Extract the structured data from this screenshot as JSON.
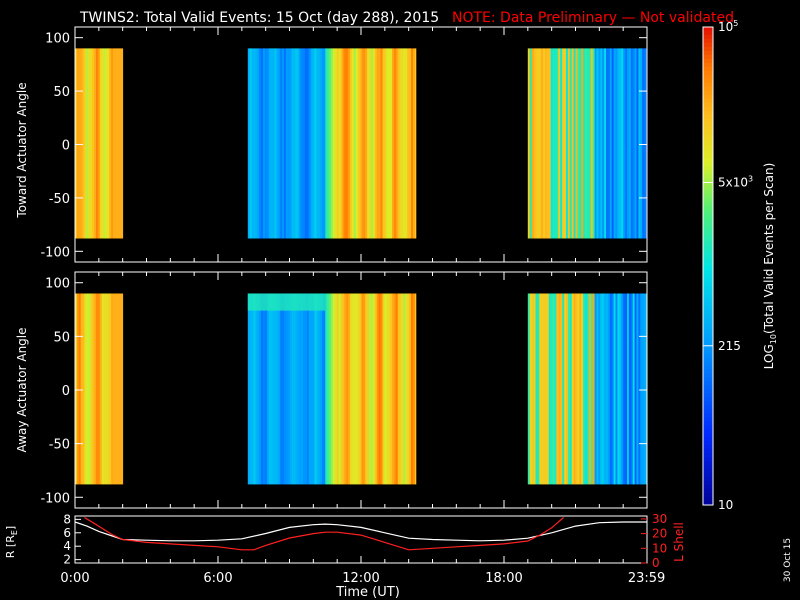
{
  "title": "TWINS2: Total Valid Events: 15 Oct (day 288), 2015",
  "note": "NOTE: Data Preliminary — Not validated",
  "date_stamp": "30 Oct 15",
  "colors": {
    "background": "#000000",
    "axes": "#ffffff",
    "note": "#ff0000",
    "lshell": "#ff2020",
    "radius": "#ffffff"
  },
  "chart_data": [
    {
      "type": "heatmap",
      "name": "toward",
      "ylabel": "Toward Actuator Angle",
      "xlim": [
        0,
        24
      ],
      "ylim": [
        -110,
        110
      ],
      "yticks": [
        100,
        50,
        0,
        -50,
        -100
      ],
      "angle_range": [
        -88,
        90
      ],
      "intervals": [
        {
          "start": 0.0,
          "end": 2.0,
          "profile": "warm"
        },
        {
          "start": 7.25,
          "end": 10.5,
          "profile": "cool"
        },
        {
          "start": 10.5,
          "end": 14.3,
          "profile": "warm"
        },
        {
          "start": 19.0,
          "end": 21.8,
          "profile": "mixed"
        },
        {
          "start": 21.8,
          "end": 24.0,
          "profile": "cool-dark"
        }
      ]
    },
    {
      "type": "heatmap",
      "name": "away",
      "ylabel": "Away Actuator Angle",
      "xlim": [
        0,
        24
      ],
      "ylim": [
        -110,
        110
      ],
      "yticks": [
        100,
        50,
        0,
        -50,
        -100
      ],
      "angle_range": [
        -88,
        90
      ],
      "intervals": [
        {
          "start": 0.0,
          "end": 2.0,
          "profile": "warm"
        },
        {
          "start": 7.25,
          "end": 10.5,
          "profile": "cool"
        },
        {
          "start": 10.5,
          "end": 14.3,
          "profile": "warm"
        },
        {
          "start": 19.0,
          "end": 21.8,
          "profile": "mixed"
        },
        {
          "start": 21.8,
          "end": 24.0,
          "profile": "cool-dark"
        }
      ]
    },
    {
      "type": "line",
      "name": "orbit",
      "xlabel": "Time (UT)",
      "xticks": [
        {
          "v": 0,
          "label": "0:00"
        },
        {
          "v": 6,
          "label": "6:00"
        },
        {
          "v": 12,
          "label": "12:00"
        },
        {
          "v": 18,
          "label": "18:00"
        },
        {
          "v": 23.983,
          "label": "23:59"
        }
      ],
      "ylabel_left": "R [R",
      "ylabel_left_sub": "E",
      "ylabel_left_end": "]",
      "ylim_left": [
        1.5,
        8.5
      ],
      "yticks_left": [
        2,
        4,
        6,
        8
      ],
      "ylabel_right": "L Shell",
      "ylim_right": [
        0,
        32
      ],
      "yticks_right": [
        0,
        10,
        20,
        30
      ],
      "series": [
        {
          "axis": "left",
          "x": [
            0,
            0.5,
            1,
            1.5,
            2,
            3,
            4,
            5,
            6,
            7,
            8,
            9,
            10,
            10.5,
            11,
            12,
            13,
            14,
            15,
            16,
            17,
            18,
            19,
            20,
            21,
            22,
            23,
            24
          ],
          "y": [
            7.6,
            7.0,
            6.2,
            5.6,
            5.0,
            4.9,
            4.8,
            4.8,
            4.9,
            5.1,
            5.9,
            6.8,
            7.2,
            7.3,
            7.2,
            6.8,
            6.0,
            5.2,
            5.0,
            4.9,
            4.8,
            4.9,
            5.2,
            6.0,
            7.0,
            7.5,
            7.6,
            7.6
          ]
        },
        {
          "axis": "right",
          "x": [
            0.4,
            0.8,
            1.2,
            1.6,
            2,
            3,
            4,
            5,
            6,
            7,
            7.5,
            8,
            9,
            10,
            10.5,
            11,
            12,
            13,
            14,
            15,
            16,
            17,
            18,
            19,
            19.5,
            20,
            20.5
          ],
          "y": [
            31,
            27,
            23,
            19,
            16,
            14,
            13,
            12,
            11,
            9,
            9,
            12,
            17,
            20,
            21,
            21,
            19,
            14,
            9,
            10,
            11,
            12,
            13,
            15,
            19,
            24,
            31
          ]
        }
      ]
    }
  ],
  "colorbar": {
    "label_prefix": "LOG",
    "label_sub": "10",
    "label_suffix": "(Total Valid Events per Scan)",
    "scale": "log",
    "range": [
      10,
      100000
    ],
    "ticks": [
      {
        "v": 100000,
        "base": "10",
        "sup": "5"
      },
      {
        "v": 5000,
        "base": "5x10",
        "sup": "3"
      },
      {
        "v": 215,
        "base": "215",
        "sup": ""
      },
      {
        "v": 10,
        "base": "10",
        "sup": ""
      }
    ]
  }
}
